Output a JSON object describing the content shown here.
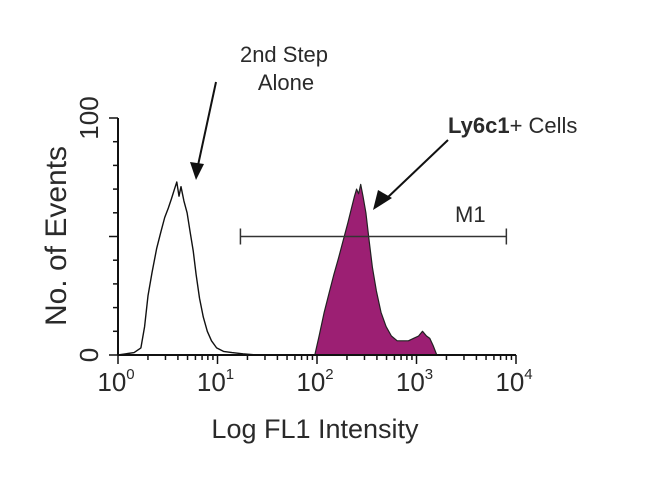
{
  "chart_data": {
    "type": "area",
    "title": "",
    "xlabel": "Log FL1 Intensity",
    "ylabel": "No. of Events",
    "xscale": "log",
    "xlim": [
      1,
      10000
    ],
    "ylim": [
      0,
      100
    ],
    "y_ticks": [
      "0",
      "100"
    ],
    "x_ticks": [
      {
        "base": "10",
        "exp": "0",
        "value": 1
      },
      {
        "base": "10",
        "exp": "1",
        "value": 10
      },
      {
        "base": "10",
        "exp": "2",
        "value": 100
      },
      {
        "base": "10",
        "exp": "3",
        "value": 1000
      },
      {
        "base": "10",
        "exp": "4",
        "value": 10000
      }
    ],
    "grid": false,
    "series": [
      {
        "label": "2nd Step Alone",
        "style": "outline",
        "color": "#111111",
        "points": [
          [
            1.0,
            0
          ],
          [
            1.2,
            0.5
          ],
          [
            1.45,
            1
          ],
          [
            1.7,
            3
          ],
          [
            1.85,
            12
          ],
          [
            2.0,
            25
          ],
          [
            2.2,
            35
          ],
          [
            2.45,
            45
          ],
          [
            2.7,
            52
          ],
          [
            2.95,
            58
          ],
          [
            3.2,
            62
          ],
          [
            3.45,
            66
          ],
          [
            3.7,
            70
          ],
          [
            3.9,
            73
          ],
          [
            4.1,
            67
          ],
          [
            4.3,
            71
          ],
          [
            4.6,
            65
          ],
          [
            4.95,
            60
          ],
          [
            5.3,
            52
          ],
          [
            5.7,
            44
          ],
          [
            6.1,
            34
          ],
          [
            6.6,
            24
          ],
          [
            7.2,
            16
          ],
          [
            7.9,
            10
          ],
          [
            8.7,
            6
          ],
          [
            9.8,
            3
          ],
          [
            11.5,
            1.5
          ],
          [
            14,
            1
          ],
          [
            18,
            0.5
          ],
          [
            25,
            0
          ]
        ]
      },
      {
        "label": "Ly6c1+ Cells",
        "style": "filled",
        "color": "#9c1f73",
        "points": [
          [
            95,
            0
          ],
          [
            105,
            8
          ],
          [
            118,
            18
          ],
          [
            132,
            26
          ],
          [
            148,
            34
          ],
          [
            165,
            41
          ],
          [
            185,
            49
          ],
          [
            205,
            56
          ],
          [
            222,
            62
          ],
          [
            238,
            67
          ],
          [
            250,
            70
          ],
          [
            262,
            68
          ],
          [
            275,
            72
          ],
          [
            290,
            67
          ],
          [
            310,
            60
          ],
          [
            335,
            48
          ],
          [
            360,
            37
          ],
          [
            395,
            27
          ],
          [
            440,
            18
          ],
          [
            495,
            12
          ],
          [
            560,
            8
          ],
          [
            640,
            6
          ],
          [
            730,
            6
          ],
          [
            830,
            6
          ],
          [
            930,
            7
          ],
          [
            1050,
            8
          ],
          [
            1150,
            10
          ],
          [
            1260,
            8
          ],
          [
            1360,
            7
          ],
          [
            1470,
            4
          ],
          [
            1600,
            0
          ]
        ]
      }
    ],
    "gate": {
      "label": "M1",
      "range": [
        17,
        8000
      ],
      "y": 50
    },
    "annotations": [
      {
        "lines": [
          "2nd Step",
          "Alone"
        ],
        "points_to_series": "2nd Step Alone"
      },
      {
        "bold": "Ly6c1",
        "rest": "+ Cells",
        "points_to_series": "Ly6c1+ Cells"
      }
    ]
  }
}
